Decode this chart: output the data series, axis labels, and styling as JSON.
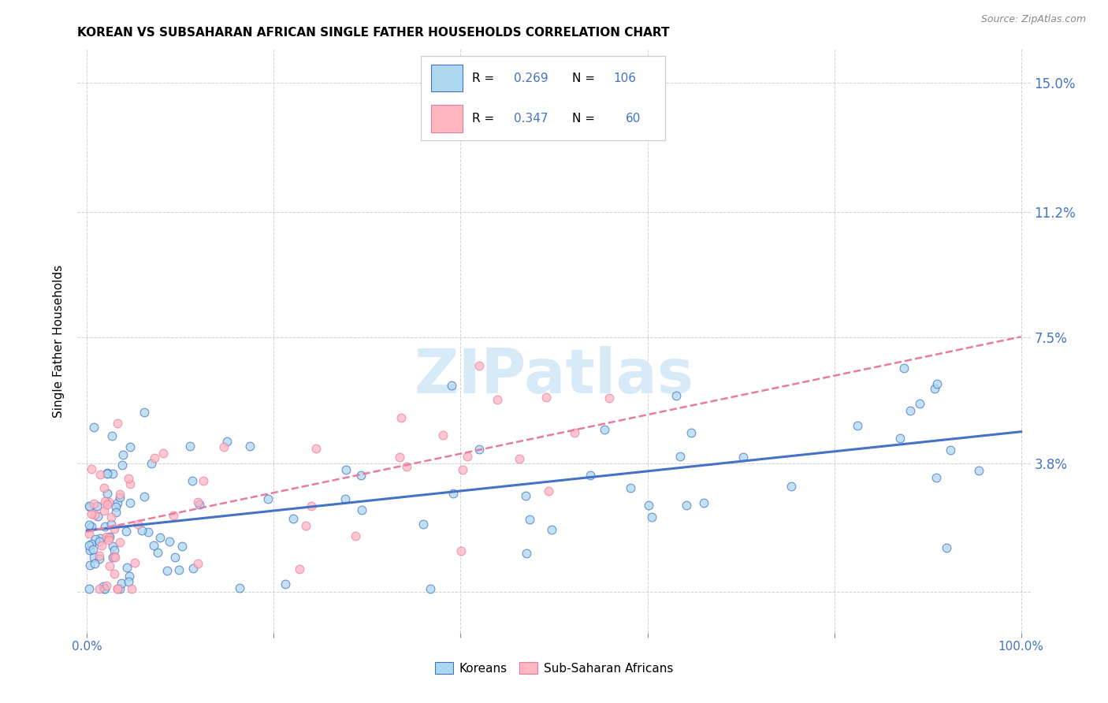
{
  "title": "KOREAN VS SUBSAHARAN AFRICAN SINGLE FATHER HOUSEHOLDS CORRELATION CHART",
  "source": "Source: ZipAtlas.com",
  "ylabel": "Single Father Households",
  "color_korean_fill": "#ADD8F0",
  "color_korean_edge": "#4472C4",
  "color_african_fill": "#FFB6C1",
  "color_african_edge": "#E87CA0",
  "color_trend_korean": "#4472C4",
  "color_trend_african": "#E87CA0",
  "color_label_blue": "#4472C4",
  "color_grid": "#cccccc",
  "watermark_color": "#D6EAF8",
  "ytick_vals": [
    0.0,
    3.8,
    7.5,
    11.2,
    15.0
  ],
  "ytick_labels": [
    "",
    "3.8%",
    "7.5%",
    "11.2%",
    "15.0%"
  ],
  "xlim": [
    0,
    100
  ],
  "ylim": [
    -1.2,
    16.0
  ],
  "legend_r1": "0.269",
  "legend_n1": "106",
  "legend_r2": "0.347",
  "legend_n2": "60"
}
